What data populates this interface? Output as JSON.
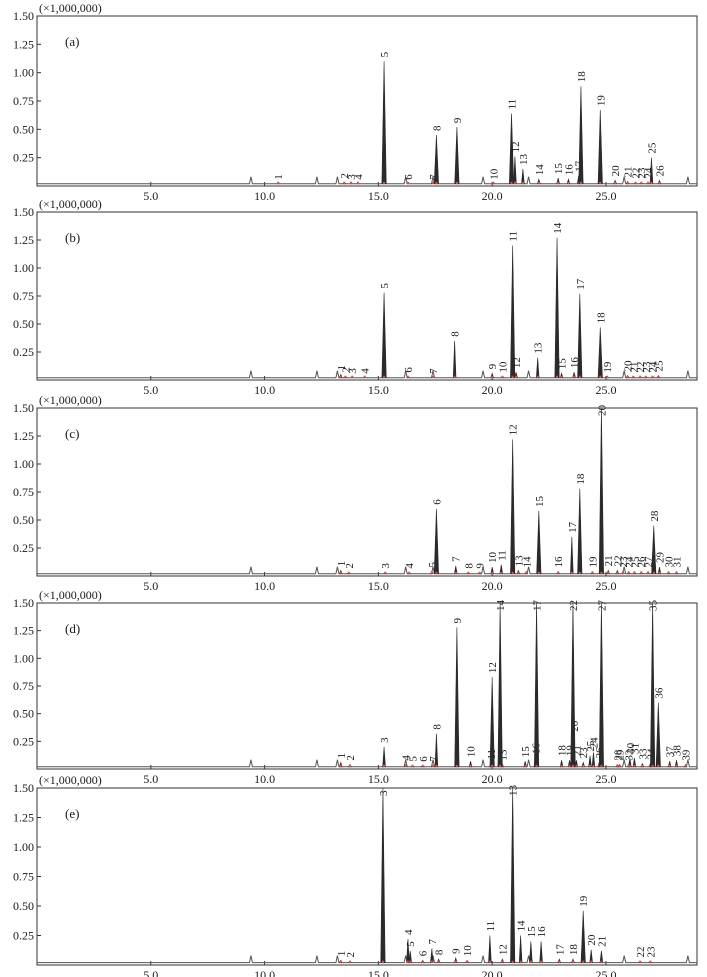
{
  "figure": {
    "multiplier_label": "(×1,000,000)",
    "x_ticks": [
      "5.0",
      "10.0",
      "15.0",
      "20.0",
      "25.0"
    ],
    "y_ticks": [
      "0.25",
      "0.50",
      "0.75",
      "1.00",
      "1.25",
      "1.50"
    ]
  },
  "chart_data": [
    {
      "type": "line",
      "panel": "(a)",
      "xlabel": "",
      "ylabel": "",
      "xlim": [
        0,
        29
      ],
      "ylim": [
        0,
        1.5
      ],
      "peaks": [
        {
          "label": "1",
          "x": 10.6,
          "y": 0.02
        },
        {
          "label": "2",
          "x": 13.5,
          "y": 0.03
        },
        {
          "label": "3",
          "x": 13.8,
          "y": 0.02
        },
        {
          "label": "4",
          "x": 14.1,
          "y": 0.02
        },
        {
          "label": "5",
          "x": 15.25,
          "y": 1.1
        },
        {
          "label": "6",
          "x": 16.3,
          "y": 0.02
        },
        {
          "label": "7",
          "x": 17.4,
          "y": 0.02
        },
        {
          "label": "8",
          "x": 17.55,
          "y": 0.45
        },
        {
          "label": "9",
          "x": 18.45,
          "y": 0.52
        },
        {
          "label": "10",
          "x": 20.05,
          "y": 0.02
        },
        {
          "label": "11",
          "x": 20.85,
          "y": 0.64
        },
        {
          "label": "12",
          "x": 21.0,
          "y": 0.26
        },
        {
          "label": "13",
          "x": 21.35,
          "y": 0.15
        },
        {
          "label": "14",
          "x": 22.05,
          "y": 0.06
        },
        {
          "label": "15",
          "x": 22.9,
          "y": 0.07
        },
        {
          "label": "16",
          "x": 23.35,
          "y": 0.06
        },
        {
          "label": "17",
          "x": 23.8,
          "y": 0.09
        },
        {
          "label": "18",
          "x": 23.9,
          "y": 0.88
        },
        {
          "label": "19",
          "x": 24.75,
          "y": 0.67
        },
        {
          "label": "20",
          "x": 25.4,
          "y": 0.05
        },
        {
          "label": "21",
          "x": 25.95,
          "y": 0.04
        },
        {
          "label": "22",
          "x": 26.3,
          "y": 0.03
        },
        {
          "label": "23",
          "x": 26.55,
          "y": 0.03
        },
        {
          "label": "24",
          "x": 26.85,
          "y": 0.03
        },
        {
          "label": "25",
          "x": 27.0,
          "y": 0.25
        },
        {
          "label": "26",
          "x": 27.35,
          "y": 0.05
        }
      ]
    },
    {
      "type": "line",
      "panel": "(b)",
      "xlabel": "",
      "ylabel": "",
      "xlim": [
        0,
        29
      ],
      "ylim": [
        0,
        1.5
      ],
      "peaks": [
        {
          "label": "1",
          "x": 13.35,
          "y": 0.05
        },
        {
          "label": "2",
          "x": 13.55,
          "y": 0.03
        },
        {
          "label": "3",
          "x": 13.85,
          "y": 0.02
        },
        {
          "label": "4",
          "x": 14.4,
          "y": 0.02
        },
        {
          "label": "5",
          "x": 15.25,
          "y": 0.78
        },
        {
          "label": "6",
          "x": 16.3,
          "y": 0.03
        },
        {
          "label": "7",
          "x": 17.4,
          "y": 0.02
        },
        {
          "label": "8",
          "x": 18.35,
          "y": 0.35
        },
        {
          "label": "9",
          "x": 20.0,
          "y": 0.06
        },
        {
          "label": "10",
          "x": 20.45,
          "y": 0.03
        },
        {
          "label": "11",
          "x": 20.9,
          "y": 1.2
        },
        {
          "label": "12",
          "x": 21.05,
          "y": 0.07
        },
        {
          "label": "13",
          "x": 22.0,
          "y": 0.2
        },
        {
          "label": "14",
          "x": 22.85,
          "y": 1.27
        },
        {
          "label": "15",
          "x": 23.05,
          "y": 0.06
        },
        {
          "label": "16",
          "x": 23.6,
          "y": 0.07
        },
        {
          "label": "17",
          "x": 23.85,
          "y": 0.77
        },
        {
          "label": "18",
          "x": 24.75,
          "y": 0.47
        },
        {
          "label": "19",
          "x": 25.05,
          "y": 0.03
        },
        {
          "label": "20",
          "x": 25.95,
          "y": 0.04
        },
        {
          "label": "21",
          "x": 26.2,
          "y": 0.03
        },
        {
          "label": "22",
          "x": 26.5,
          "y": 0.03
        },
        {
          "label": "23",
          "x": 26.75,
          "y": 0.03
        },
        {
          "label": "24",
          "x": 27.05,
          "y": 0.03
        },
        {
          "label": "25",
          "x": 27.3,
          "y": 0.04
        }
      ]
    },
    {
      "type": "line",
      "panel": "(c)",
      "xlabel": "",
      "ylabel": "",
      "xlim": [
        0,
        29
      ],
      "ylim": [
        0,
        1.5
      ],
      "peaks": [
        {
          "label": "1",
          "x": 13.35,
          "y": 0.05
        },
        {
          "label": "2",
          "x": 13.7,
          "y": 0.03
        },
        {
          "label": "3",
          "x": 15.3,
          "y": 0.03
        },
        {
          "label": "4",
          "x": 16.35,
          "y": 0.03
        },
        {
          "label": "5",
          "x": 17.35,
          "y": 0.04
        },
        {
          "label": "6",
          "x": 17.55,
          "y": 0.6
        },
        {
          "label": "7",
          "x": 18.4,
          "y": 0.09
        },
        {
          "label": "8",
          "x": 18.95,
          "y": 0.03
        },
        {
          "label": "9",
          "x": 19.45,
          "y": 0.03
        },
        {
          "label": "10",
          "x": 20.0,
          "y": 0.08
        },
        {
          "label": "11",
          "x": 20.4,
          "y": 0.1
        },
        {
          "label": "12",
          "x": 20.9,
          "y": 1.22
        },
        {
          "label": "13",
          "x": 21.15,
          "y": 0.05
        },
        {
          "label": "14",
          "x": 21.5,
          "y": 0.04
        },
        {
          "label": "15",
          "x": 22.05,
          "y": 0.58
        },
        {
          "label": "16",
          "x": 22.9,
          "y": 0.04
        },
        {
          "label": "17",
          "x": 23.5,
          "y": 0.35
        },
        {
          "label": "18",
          "x": 23.85,
          "y": 0.78
        },
        {
          "label": "19",
          "x": 24.4,
          "y": 0.04
        },
        {
          "label": "20",
          "x": 24.8,
          "y": 1.5
        },
        {
          "label": "21",
          "x": 25.1,
          "y": 0.05
        },
        {
          "label": "22",
          "x": 25.5,
          "y": 0.05
        },
        {
          "label": "23",
          "x": 25.75,
          "y": 0.04
        },
        {
          "label": "24",
          "x": 26.0,
          "y": 0.04
        },
        {
          "label": "25",
          "x": 26.25,
          "y": 0.04
        },
        {
          "label": "26",
          "x": 26.55,
          "y": 0.04
        },
        {
          "label": "27",
          "x": 26.85,
          "y": 0.04
        },
        {
          "label": "28",
          "x": 27.1,
          "y": 0.45
        },
        {
          "label": "29",
          "x": 27.35,
          "y": 0.08
        },
        {
          "label": "30",
          "x": 27.75,
          "y": 0.04
        },
        {
          "label": "31",
          "x": 28.1,
          "y": 0.04
        }
      ]
    },
    {
      "type": "line",
      "panel": "(d)",
      "xlabel": "",
      "ylabel": "",
      "xlim": [
        0,
        29
      ],
      "ylim": [
        0,
        1.5
      ],
      "peaks": [
        {
          "label": "1",
          "x": 13.35,
          "y": 0.06
        },
        {
          "label": "2",
          "x": 13.75,
          "y": 0.04
        },
        {
          "label": "3",
          "x": 15.25,
          "y": 0.2
        },
        {
          "label": "4",
          "x": 16.2,
          "y": 0.04
        },
        {
          "label": "5",
          "x": 16.5,
          "y": 0.03
        },
        {
          "label": "6",
          "x": 16.95,
          "y": 0.03
        },
        {
          "label": "7",
          "x": 17.4,
          "y": 0.03
        },
        {
          "label": "8",
          "x": 17.55,
          "y": 0.32
        },
        {
          "label": "9",
          "x": 18.45,
          "y": 1.28
        },
        {
          "label": "10",
          "x": 19.05,
          "y": 0.07
        },
        {
          "label": "11",
          "x": 19.95,
          "y": 0.05
        },
        {
          "label": "12",
          "x": 20.0,
          "y": 0.83
        },
        {
          "label": "13",
          "x": 20.45,
          "y": 0.04
        },
        {
          "label": "14",
          "x": 20.35,
          "y": 1.5
        },
        {
          "label": "15",
          "x": 21.45,
          "y": 0.07
        },
        {
          "label": "16",
          "x": 21.9,
          "y": 0.1
        },
        {
          "label": "17",
          "x": 21.95,
          "y": 1.5
        },
        {
          "label": "18",
          "x": 23.05,
          "y": 0.08
        },
        {
          "label": "19",
          "x": 23.4,
          "y": 0.08
        },
        {
          "label": "20",
          "x": 23.6,
          "y": 0.3
        },
        {
          "label": "21",
          "x": 23.7,
          "y": 0.08
        },
        {
          "label": "22",
          "x": 23.55,
          "y": 1.5
        },
        {
          "label": "23",
          "x": 24.0,
          "y": 0.06
        },
        {
          "label": "24",
          "x": 24.45,
          "y": 0.15
        },
        {
          "label": "25",
          "x": 24.3,
          "y": 0.12
        },
        {
          "label": "26",
          "x": 24.7,
          "y": 0.06
        },
        {
          "label": "27",
          "x": 24.8,
          "y": 1.5
        },
        {
          "label": "28",
          "x": 25.5,
          "y": 0.04
        },
        {
          "label": "29",
          "x": 25.6,
          "y": 0.04
        },
        {
          "label": "30",
          "x": 26.05,
          "y": 0.1
        },
        {
          "label": "31",
          "x": 26.25,
          "y": 0.1
        },
        {
          "label": "32",
          "x": 26.0,
          "y": 0.04
        },
        {
          "label": "33",
          "x": 26.6,
          "y": 0.05
        },
        {
          "label": "34",
          "x": 26.95,
          "y": 0.05
        },
        {
          "label": "35",
          "x": 27.05,
          "y": 1.5
        },
        {
          "label": "36",
          "x": 27.3,
          "y": 0.6
        },
        {
          "label": "37",
          "x": 27.8,
          "y": 0.07
        },
        {
          "label": "38",
          "x": 28.1,
          "y": 0.08
        },
        {
          "label": "39",
          "x": 28.5,
          "y": 0.04
        }
      ]
    },
    {
      "type": "line",
      "panel": "(e)",
      "xlabel": "",
      "ylabel": "",
      "xlim": [
        0,
        29
      ],
      "ylim": [
        0,
        1.5
      ],
      "peaks": [
        {
          "label": "1",
          "x": 13.35,
          "y": 0.04
        },
        {
          "label": "2",
          "x": 13.75,
          "y": 0.03
        },
        {
          "label": "3",
          "x": 15.2,
          "y": 1.5
        },
        {
          "label": "4",
          "x": 16.3,
          "y": 0.22
        },
        {
          "label": "5",
          "x": 16.4,
          "y": 0.12
        },
        {
          "label": "6",
          "x": 16.95,
          "y": 0.04
        },
        {
          "label": "7",
          "x": 17.35,
          "y": 0.14
        },
        {
          "label": "8",
          "x": 17.65,
          "y": 0.05
        },
        {
          "label": "9",
          "x": 18.4,
          "y": 0.06
        },
        {
          "label": "10",
          "x": 18.9,
          "y": 0.04
        },
        {
          "label": "11",
          "x": 19.9,
          "y": 0.25
        },
        {
          "label": "12",
          "x": 20.45,
          "y": 0.05
        },
        {
          "label": "13",
          "x": 20.9,
          "y": 1.5
        },
        {
          "label": "14",
          "x": 21.25,
          "y": 0.25
        },
        {
          "label": "15",
          "x": 21.7,
          "y": 0.2
        },
        {
          "label": "16",
          "x": 22.15,
          "y": 0.2
        },
        {
          "label": "17",
          "x": 22.95,
          "y": 0.05
        },
        {
          "label": "18",
          "x": 23.55,
          "y": 0.05
        },
        {
          "label": "19",
          "x": 24.0,
          "y": 0.46
        },
        {
          "label": "20",
          "x": 24.35,
          "y": 0.13
        },
        {
          "label": "21",
          "x": 24.8,
          "y": 0.12
        },
        {
          "label": "22",
          "x": 26.5,
          "y": 0.03
        },
        {
          "label": "23",
          "x": 26.95,
          "y": 0.03
        }
      ]
    }
  ]
}
